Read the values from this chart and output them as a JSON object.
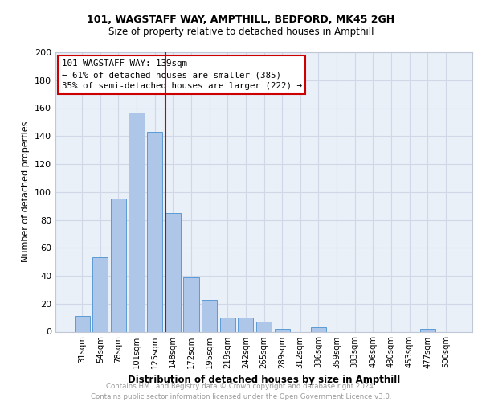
{
  "title1": "101, WAGSTAFF WAY, AMPTHILL, BEDFORD, MK45 2GH",
  "title2": "Size of property relative to detached houses in Ampthill",
  "xlabel": "Distribution of detached houses by size in Ampthill",
  "ylabel": "Number of detached properties",
  "categories": [
    "31sqm",
    "54sqm",
    "78sqm",
    "101sqm",
    "125sqm",
    "148sqm",
    "172sqm",
    "195sqm",
    "219sqm",
    "242sqm",
    "265sqm",
    "289sqm",
    "312sqm",
    "336sqm",
    "359sqm",
    "383sqm",
    "406sqm",
    "430sqm",
    "453sqm",
    "477sqm",
    "500sqm"
  ],
  "values": [
    11,
    53,
    95,
    157,
    143,
    85,
    39,
    23,
    10,
    10,
    7,
    2,
    0,
    3,
    0,
    0,
    0,
    0,
    0,
    2,
    0
  ],
  "bar_color": "#aec6e8",
  "bar_edge_color": "#5b9bd5",
  "vline_color": "#cc0000",
  "annotation_line1": "101 WAGSTAFF WAY: 139sqm",
  "annotation_line2": "← 61% of detached houses are smaller (385)",
  "annotation_line3": "35% of semi-detached houses are larger (222) →",
  "annotation_box_color": "#cc0000",
  "footer_line1": "Contains HM Land Registry data © Crown copyright and database right 2024.",
  "footer_line2": "Contains public sector information licensed under the Open Government Licence v3.0.",
  "ylim": [
    0,
    200
  ],
  "yticks": [
    0,
    20,
    40,
    60,
    80,
    100,
    120,
    140,
    160,
    180,
    200
  ],
  "grid_color": "#d0d8e8",
  "background_color": "#eaf0f8"
}
